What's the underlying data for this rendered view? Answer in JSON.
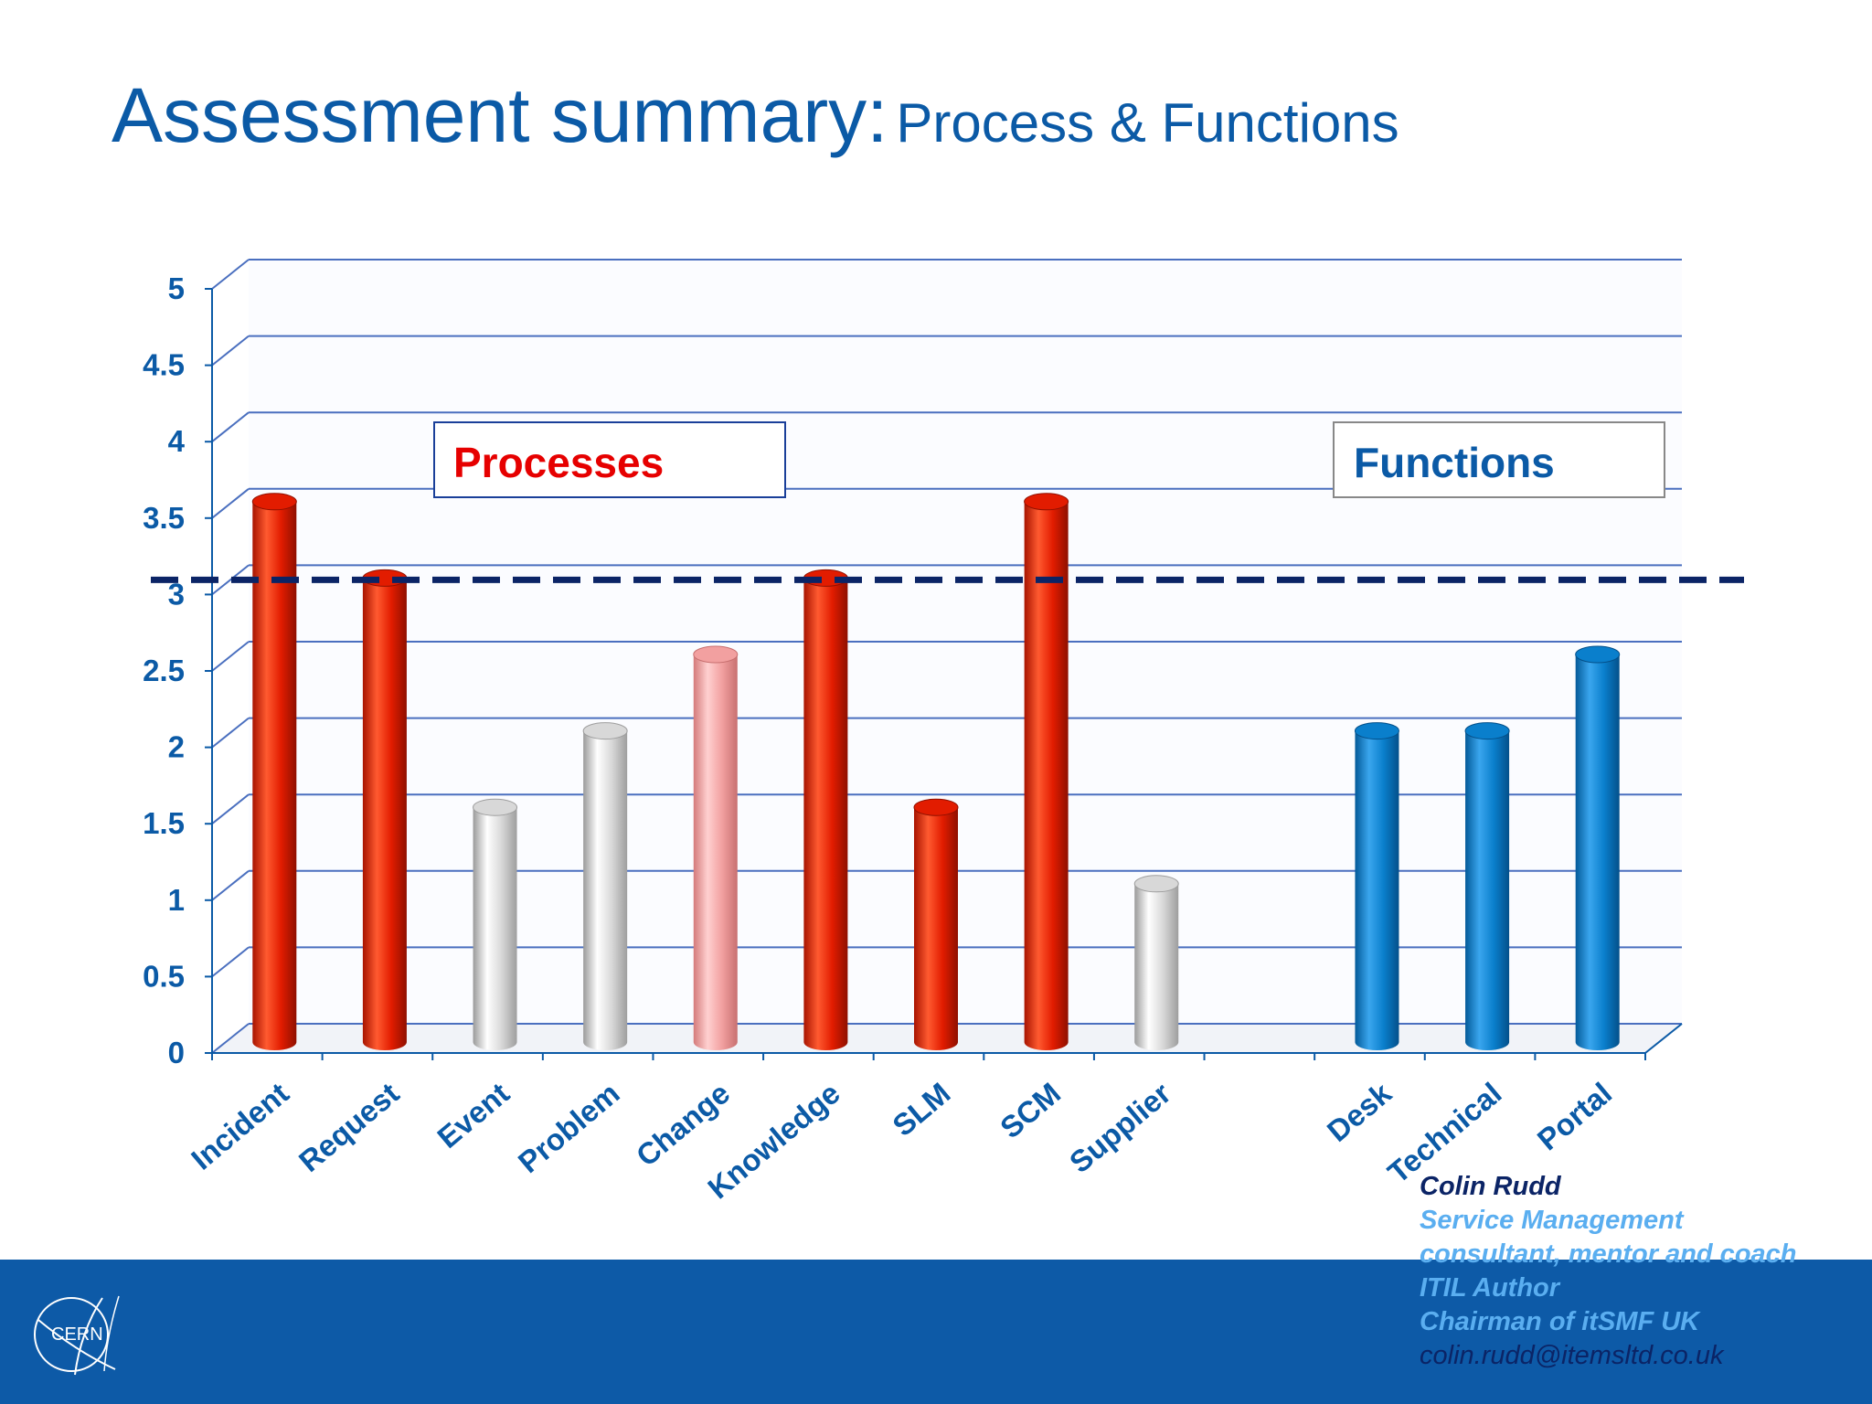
{
  "title": {
    "main": "Assessment summary:",
    "sub": "Process & Functions"
  },
  "chart_data": {
    "type": "bar",
    "title": "",
    "xlabel": "",
    "ylabel": "",
    "ylim": [
      0,
      5
    ],
    "yticks": [
      "0",
      "0.5",
      "1",
      "1.5",
      "2",
      "2.5",
      "3",
      "3.5",
      "4",
      "4.5",
      "5"
    ],
    "grid": true,
    "style": "3d-cylinder",
    "reference_line": {
      "value": 3,
      "style": "dashed",
      "color": "#0b2466"
    },
    "categories": [
      "Incident",
      "Request",
      "Event",
      "Problem",
      "Change",
      "Knowledge",
      "SLM",
      "SCM",
      "Supplier",
      "",
      "Desk",
      "Technical",
      "Portal"
    ],
    "values": [
      3.5,
      3,
      1.5,
      2,
      2.5,
      3,
      1.5,
      3.5,
      1,
      null,
      2,
      2,
      2.5
    ],
    "bar_colors": [
      "red",
      "red",
      "grey",
      "grey",
      "pink",
      "red",
      "red",
      "red",
      "grey",
      "none",
      "blue",
      "blue",
      "blue"
    ],
    "palette": {
      "red": "#ee2200",
      "grey": "#d6d6d6",
      "pink": "#f4a3a3",
      "blue": "#0a7fcc",
      "axis": "#0b5aa6",
      "grid": "#4a6fbf"
    },
    "annotations": [
      {
        "text": "Processes",
        "color": "#e60000"
      },
      {
        "text": "Functions",
        "color": "#0b5aa6"
      }
    ]
  },
  "footer": {
    "logo_text": "CERN",
    "signature": {
      "name": "Colin Rudd",
      "lines": [
        "Service Management",
        "consultant, mentor and coach",
        "ITIL Author",
        "Chairman of itSMF UK"
      ],
      "email": "colin.rudd@itemsltd.co.uk"
    }
  }
}
